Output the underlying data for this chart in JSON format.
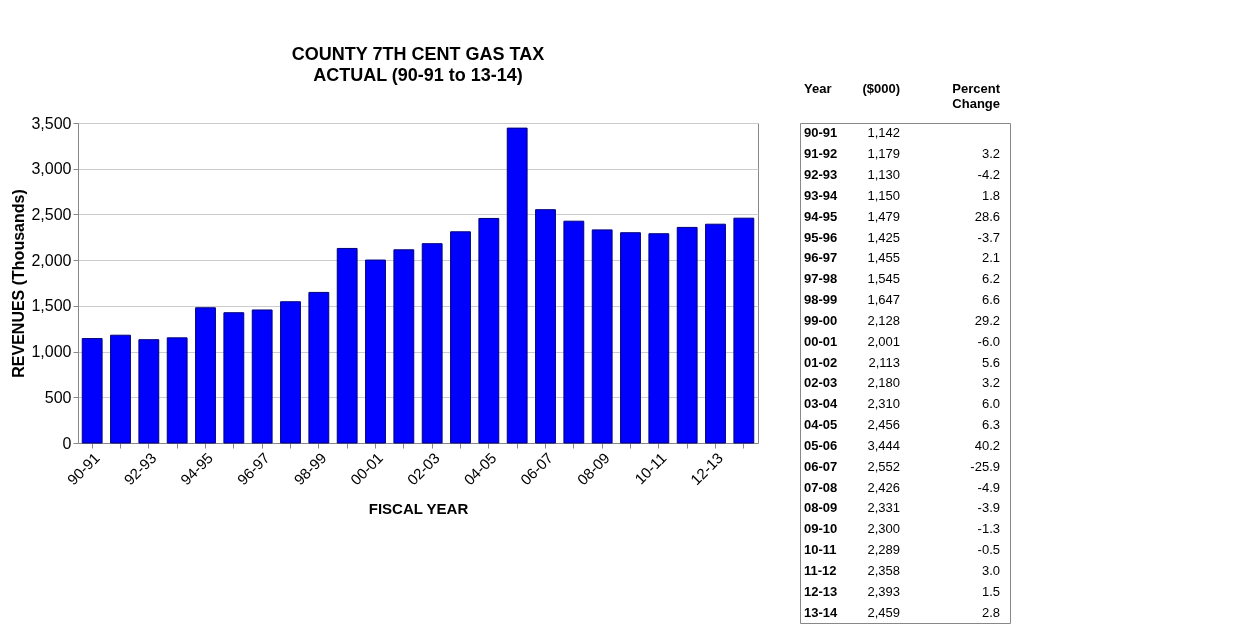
{
  "chart_data": [
    {
      "type": "bar",
      "title": "COUNTY 7TH CENT GAS TAX",
      "subtitle": "ACTUAL (90-91 to 13-14)",
      "xlabel": "FISCAL YEAR",
      "ylabel": "REVENUES (Thousands)",
      "categories": [
        "90-91",
        null,
        "92-93",
        null,
        "94-95",
        null,
        "96-97",
        null,
        "98-99",
        null,
        "00-01",
        null,
        "02-03",
        null,
        "04-05",
        null,
        "06-07",
        null,
        "08-09",
        null,
        "10-11",
        null,
        "12-13",
        null
      ],
      "values": [
        1142,
        1179,
        1130,
        1150,
        1479,
        1425,
        1455,
        1545,
        1647,
        2128,
        2001,
        2113,
        2180,
        2310,
        2456,
        3444,
        2552,
        2426,
        2331,
        2300,
        2289,
        2358,
        2393,
        2459
      ],
      "color": "#0000ff",
      "ylim": [
        0,
        3500
      ],
      "yticks": [
        0,
        500,
        {
          "value": 1000,
          "label": "1,000"
        },
        {
          "value": 1500,
          "label": "1,500"
        },
        {
          "value": 2000,
          "label": "2,000"
        },
        {
          "value": 2500,
          "label": "2,500"
        },
        {
          "value": 3000,
          "label": "3,000"
        },
        {
          "value": 3500,
          "label": "3,500"
        }
      ],
      "grid": "y"
    },
    {
      "type": "other",
      "annotations": [
        "Year"
      ],
      "categories": [
        "90-91",
        "91-92",
        "92-93",
        "93-94",
        "94-95",
        "95-96",
        "96-97",
        "97-98",
        "98-99",
        "99-00",
        "00-01",
        "01-02",
        "02-03",
        "03-04",
        "04-05",
        "05-06",
        "06-07",
        "07-08",
        "08-09",
        "09-10",
        "10-11",
        "11-12",
        "12-13",
        "13-14"
      ],
      "series": [
        {
          "name": "($000)",
          "values": [
            1142,
            1179,
            1130,
            1150,
            1479,
            1425,
            1455,
            1545,
            1647,
            2128,
            2001,
            2113,
            2180,
            2310,
            2456,
            3444,
            2552,
            2426,
            2331,
            2300,
            2289,
            2358,
            2393,
            2459
          ],
          "value_labels": [
            "1,142",
            "1,179",
            "1,130",
            "1,150",
            "1,479",
            "1,425",
            "1,455",
            "1,545",
            "1,647",
            "2,128",
            "2,001",
            "2,113",
            "2,180",
            "2,310",
            "2,456",
            "3,444",
            "2,552",
            "2,426",
            "2,331",
            "2,300",
            "2,289",
            "2,358",
            "2,393",
            "2,459"
          ]
        },
        {
          "name": "Percent Change",
          "values": [
            null,
            3.2,
            -4.2,
            1.8,
            28.6,
            -3.7,
            2.1,
            6.2,
            6.6,
            29.2,
            -6.0,
            5.6,
            3.2,
            6.0,
            6.3,
            40.2,
            -25.9,
            -4.9,
            -3.9,
            -1.3,
            -0.5,
            3.0,
            1.5,
            2.8
          ],
          "value_labels": [
            null,
            "3.2",
            "-4.2",
            "1.8",
            "28.6",
            "-3.7",
            "2.1",
            "6.2",
            "6.6",
            "29.2",
            "-6.0",
            "5.6",
            "3.2",
            "6.0",
            "6.3",
            "40.2",
            "-25.9",
            "-4.9",
            "-3.9",
            "-1.3",
            "-0.5",
            "3.0",
            "1.5",
            "2.8"
          ]
        }
      ]
    }
  ]
}
